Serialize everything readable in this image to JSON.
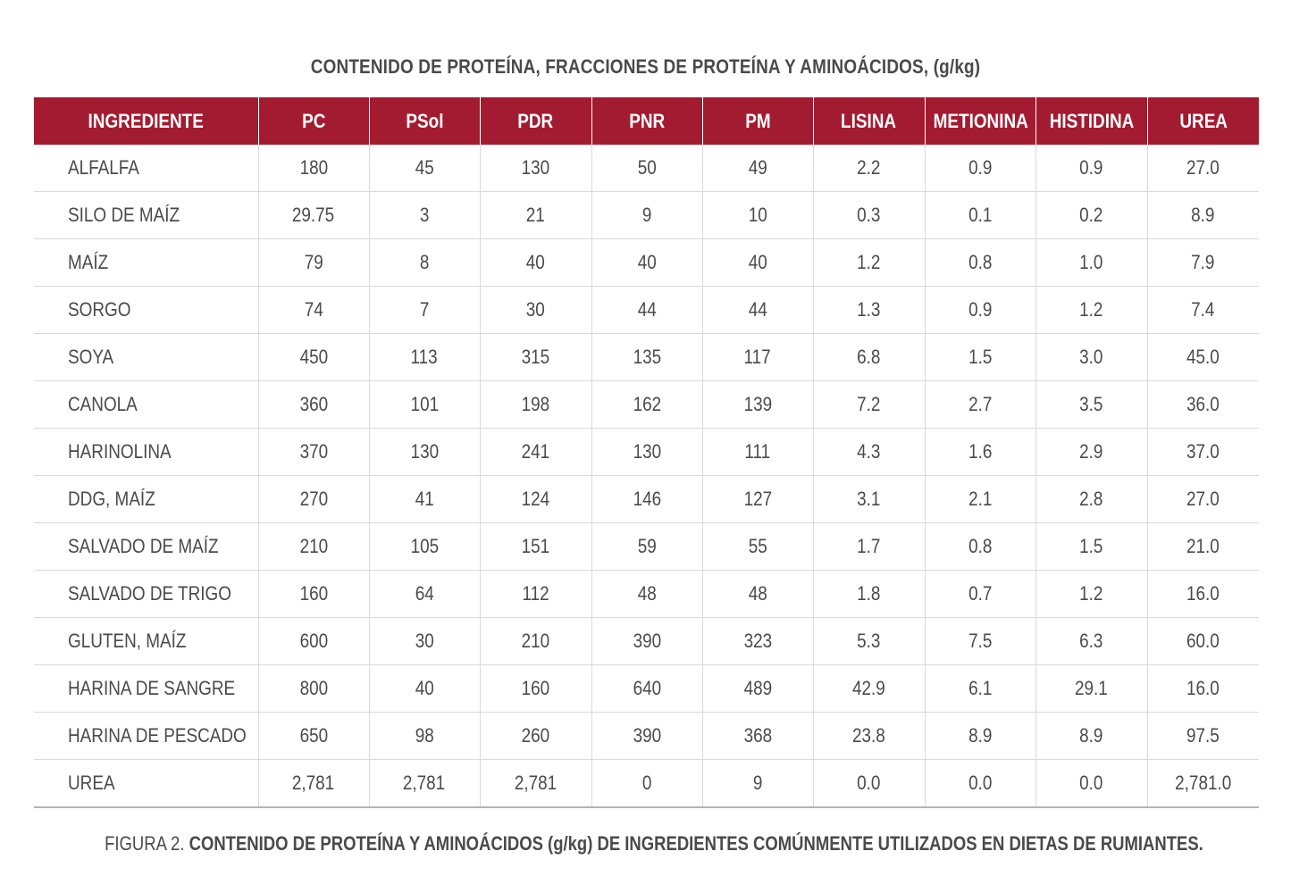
{
  "title": "CONTENIDO DE PROTEÍNA, FRACCIONES DE PROTEÍNA Y AMINOÁCIDOS, (g/kg)",
  "colors": {
    "header_bg": "#a31b30",
    "header_text": "#ffffff",
    "text": "#4a4a4a",
    "row_border": "#d9d9d9"
  },
  "table": {
    "headers": [
      "INGREDIENTE",
      "PC",
      "PSol",
      "PDR",
      "PNR",
      "PM",
      "LISINA",
      "METIONINA",
      "HISTIDINA",
      "UREA"
    ],
    "rows": [
      [
        "ALFALFA",
        "180",
        "45",
        "130",
        "50",
        "49",
        "2.2",
        "0.9",
        "0.9",
        "27.0"
      ],
      [
        "SILO DE MAÍZ",
        "29.75",
        "3",
        "21",
        "9",
        "10",
        "0.3",
        "0.1",
        "0.2",
        "8.9"
      ],
      [
        "MAÍZ",
        "79",
        "8",
        "40",
        "40",
        "40",
        "1.2",
        "0.8",
        "1.0",
        "7.9"
      ],
      [
        "SORGO",
        "74",
        "7",
        "30",
        "44",
        "44",
        "1.3",
        "0.9",
        "1.2",
        "7.4"
      ],
      [
        "SOYA",
        "450",
        "113",
        "315",
        "135",
        "117",
        "6.8",
        "1.5",
        "3.0",
        "45.0"
      ],
      [
        "CANOLA",
        "360",
        "101",
        "198",
        "162",
        "139",
        "7.2",
        "2.7",
        "3.5",
        "36.0"
      ],
      [
        "HARINOLINA",
        "370",
        "130",
        "241",
        "130",
        "111",
        "4.3",
        "1.6",
        "2.9",
        "37.0"
      ],
      [
        "DDG, MAÍZ",
        "270",
        "41",
        "124",
        "146",
        "127",
        "3.1",
        "2.1",
        "2.8",
        "27.0"
      ],
      [
        "SALVADO DE MAÍZ",
        "210",
        "105",
        "151",
        "59",
        "55",
        "1.7",
        "0.8",
        "1.5",
        "21.0"
      ],
      [
        "SALVADO DE TRIGO",
        "160",
        "64",
        "112",
        "48",
        "48",
        "1.8",
        "0.7",
        "1.2",
        "16.0"
      ],
      [
        "GLUTEN, MAÍZ",
        "600",
        "30",
        "210",
        "390",
        "323",
        "5.3",
        "7.5",
        "6.3",
        "60.0"
      ],
      [
        "HARINA DE SANGRE",
        "800",
        "40",
        "160",
        "640",
        "489",
        "42.9",
        "6.1",
        "29.1",
        "16.0"
      ],
      [
        "HARINA DE PESCADO",
        "650",
        "98",
        "260",
        "390",
        "368",
        "23.8",
        "8.9",
        "8.9",
        "97.5"
      ],
      [
        "UREA",
        "2,781",
        "2,781",
        "2,781",
        "0",
        "9",
        "0.0",
        "0.0",
        "0.0",
        "2,781.0"
      ]
    ]
  },
  "caption": {
    "prefix": "FIGURA 2. ",
    "text": "CONTENIDO DE PROTEÍNA Y AMINOÁCIDOS (g/kg) DE INGREDIENTES COMÚNMENTE UTILIZADOS EN DIETAS DE RUMIANTES."
  }
}
